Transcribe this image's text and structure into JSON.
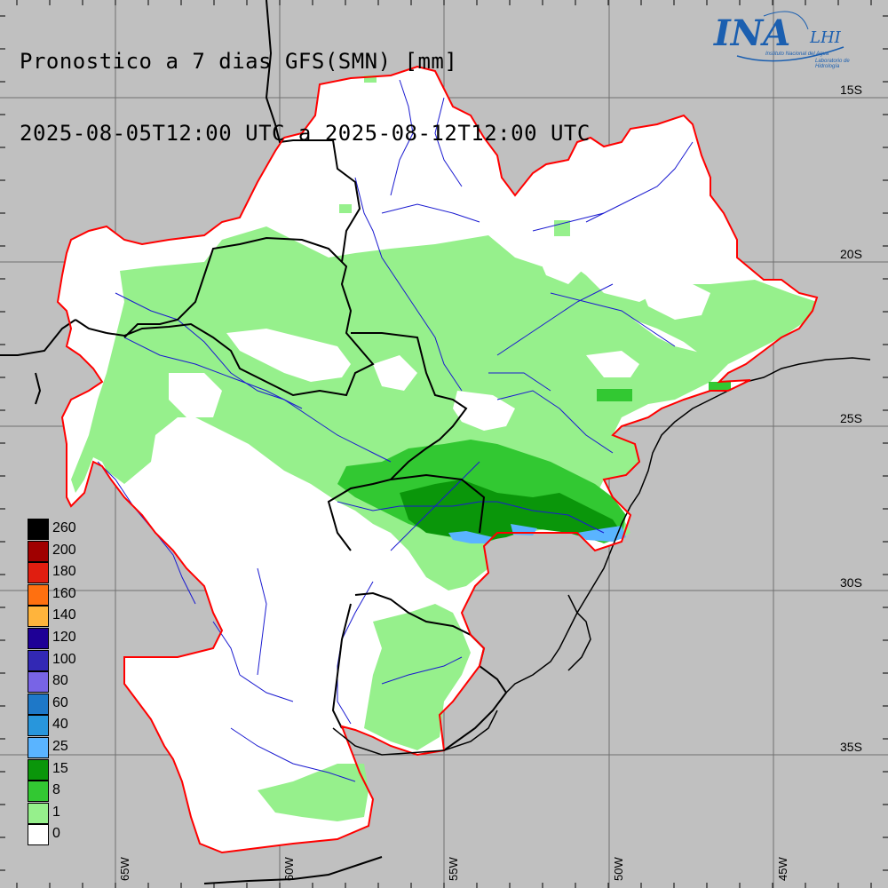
{
  "title": {
    "line1": "Pronostico a 7 dias GFS(SMN) [mm]",
    "line2": "2025-08-05T12:00 UTC a 2025-08-12T12:00 UTC"
  },
  "logo": {
    "name": "INA",
    "lab": "LHI",
    "subtitle1": "Instituto Nacional del Agua",
    "subtitle2": "Laboratorio de Hidrología",
    "color": "#1b5fb0"
  },
  "lat_labels": [
    "15S",
    "20S",
    "25S",
    "30S",
    "35S"
  ],
  "lon_labels": [
    "65W",
    "60W",
    "55W",
    "50W",
    "45W"
  ],
  "legend": [
    {
      "label": "260",
      "color": "#000000"
    },
    {
      "label": "200",
      "color": "#a00000"
    },
    {
      "label": "180",
      "color": "#e01e10"
    },
    {
      "label": "160",
      "color": "#ff7010"
    },
    {
      "label": "140",
      "color": "#ffb43c"
    },
    {
      "label": "120",
      "color": "#1e0096"
    },
    {
      "label": "100",
      "color": "#3228b4"
    },
    {
      "label": "80",
      "color": "#7864e6"
    },
    {
      "label": "60",
      "color": "#1e78c8"
    },
    {
      "label": "40",
      "color": "#2896dc"
    },
    {
      "label": "25",
      "color": "#5ab4ff"
    },
    {
      "label": "15",
      "color": "#0a960a"
    },
    {
      "label": "8",
      "color": "#32c832"
    },
    {
      "label": "1",
      "color": "#96f08c"
    },
    {
      "label": "0",
      "color": "#ffffff"
    }
  ],
  "colors": {
    "background": "#c0c0c0",
    "basin_outline": "#ff0000",
    "rivers": "#1a1ad0",
    "borders": "#000000",
    "grid": "#707070"
  }
}
